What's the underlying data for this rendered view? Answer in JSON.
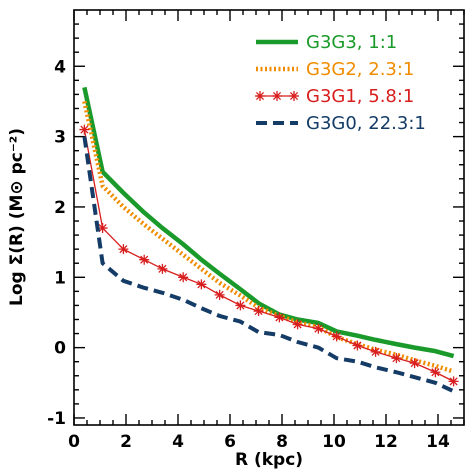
{
  "chart_data": {
    "type": "line",
    "xlabel": "R (kpc)",
    "ylabel": "Log Σ(R)  (M⊙ pc⁻²)",
    "xlim": [
      0,
      15
    ],
    "ylim": [
      -1.1,
      4.8
    ],
    "xticks": [
      0,
      2,
      4,
      6,
      8,
      10,
      12,
      14
    ],
    "yticks": [
      -1,
      0,
      1,
      2,
      3,
      4
    ],
    "legend_position": "top-right",
    "series": [
      {
        "name": "G3G3, 1:1",
        "color": "#1a9a2a",
        "style": "solid-thick",
        "x": [
          0.4,
          1.1,
          1.9,
          2.7,
          3.4,
          4.2,
          4.9,
          5.6,
          6.4,
          7.1,
          7.9,
          8.6,
          9.4,
          10.1,
          10.9,
          11.6,
          12.4,
          13.1,
          13.9,
          14.6
        ],
        "y": [
          3.7,
          2.5,
          2.2,
          1.92,
          1.7,
          1.47,
          1.25,
          1.05,
          0.83,
          0.63,
          0.47,
          0.4,
          0.35,
          0.23,
          0.17,
          0.11,
          0.05,
          0.0,
          -0.05,
          -0.12
        ]
      },
      {
        "name": "G3G2, 2.3:1",
        "color": "#f08c00",
        "style": "dotted-thick",
        "x": [
          0.4,
          1.1,
          1.9,
          2.7,
          3.4,
          4.2,
          4.9,
          5.6,
          6.4,
          7.1,
          7.9,
          8.6,
          9.4,
          10.1,
          10.9,
          11.6,
          12.4,
          13.1,
          13.9,
          14.6
        ],
        "y": [
          3.5,
          2.3,
          2.0,
          1.75,
          1.55,
          1.32,
          1.12,
          0.92,
          0.74,
          0.57,
          0.45,
          0.36,
          0.29,
          0.15,
          0.05,
          -0.03,
          -0.1,
          -0.18,
          -0.26,
          -0.34
        ]
      },
      {
        "name": "G3G1, 5.8:1",
        "color": "#d81e1e",
        "style": "solid-thin-asterisk",
        "x": [
          0.4,
          1.1,
          1.9,
          2.7,
          3.4,
          4.2,
          4.9,
          5.6,
          6.4,
          7.1,
          7.9,
          8.6,
          9.4,
          10.1,
          10.9,
          11.6,
          12.4,
          13.1,
          13.9,
          14.6
        ],
        "y": [
          3.1,
          1.7,
          1.4,
          1.25,
          1.12,
          1.0,
          0.9,
          0.75,
          0.6,
          0.52,
          0.43,
          0.33,
          0.27,
          0.16,
          0.03,
          -0.06,
          -0.15,
          -0.22,
          -0.35,
          -0.48
        ]
      },
      {
        "name": "G3G0, 22.3:1",
        "color": "#143c66",
        "style": "dashed-thick",
        "x": [
          0.4,
          1.1,
          1.9,
          2.7,
          3.4,
          4.2,
          4.9,
          5.6,
          6.4,
          7.1,
          7.9,
          8.6,
          9.4,
          10.1,
          10.9,
          11.6,
          12.4,
          13.1,
          13.9,
          14.6
        ],
        "y": [
          3.0,
          1.2,
          0.95,
          0.85,
          0.78,
          0.68,
          0.56,
          0.45,
          0.37,
          0.22,
          0.18,
          0.08,
          0.0,
          -0.15,
          -0.2,
          -0.28,
          -0.35,
          -0.42,
          -0.5,
          -0.62
        ]
      }
    ]
  }
}
